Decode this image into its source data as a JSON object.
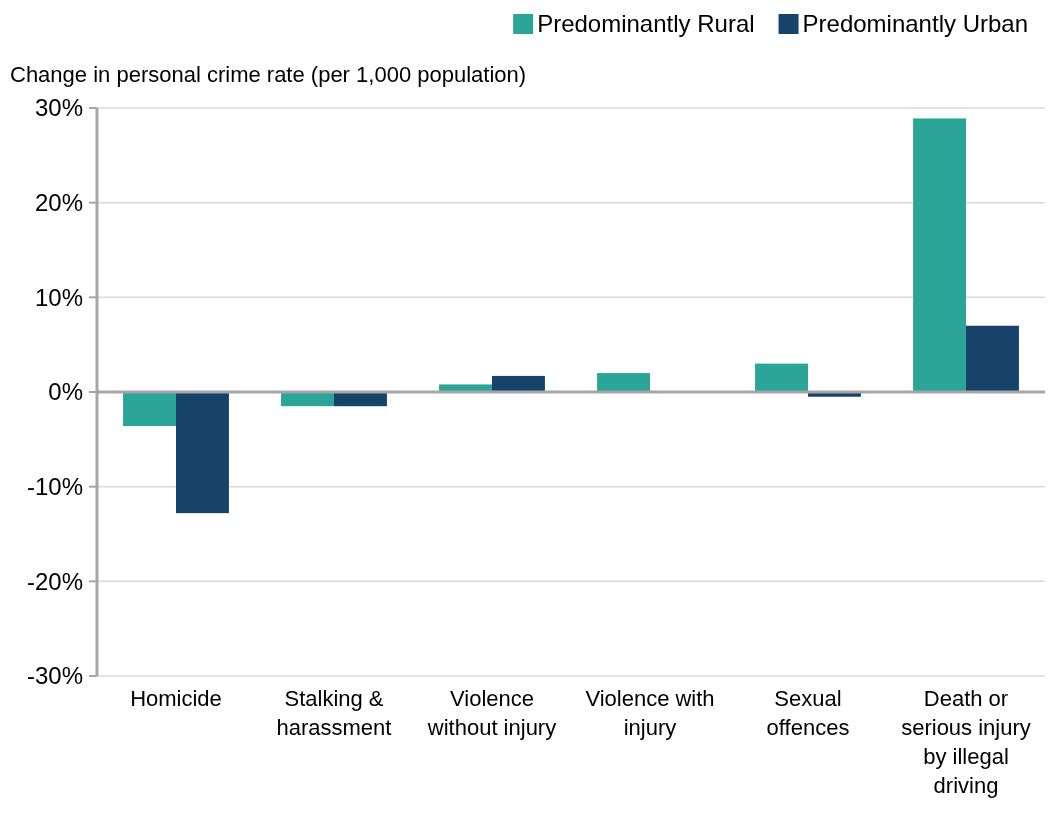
{
  "chart_data": {
    "type": "bar",
    "ylabel": "Change in personal crime rate (per 1,000 population)",
    "categories": [
      "Homicide",
      "Stalking & harassment",
      "Violence without injury",
      "Violence with injury",
      "Sexual offences",
      "Death or serious injury by illegal driving"
    ],
    "series": [
      {
        "name": "Predominantly Rural",
        "color": "#2aa597",
        "values": [
          -3.6,
          -1.5,
          0.8,
          2.0,
          3.0,
          28.9
        ]
      },
      {
        "name": "Predominantly Urban",
        "color": "#17436b",
        "values": [
          -12.8,
          -1.5,
          1.7,
          0,
          -0.5,
          7.0
        ]
      }
    ],
    "ylim": [
      -30,
      30
    ],
    "yticks": [
      {
        "value": -30,
        "label": "-30%"
      },
      {
        "value": -20,
        "label": "-20%"
      },
      {
        "value": -10,
        "label": "-10%"
      },
      {
        "value": 0,
        "label": "0%"
      },
      {
        "value": 10,
        "label": "10%"
      },
      {
        "value": 20,
        "label": "20%"
      },
      {
        "value": 30,
        "label": "30%"
      }
    ],
    "grid": "y",
    "legend": "top right"
  }
}
